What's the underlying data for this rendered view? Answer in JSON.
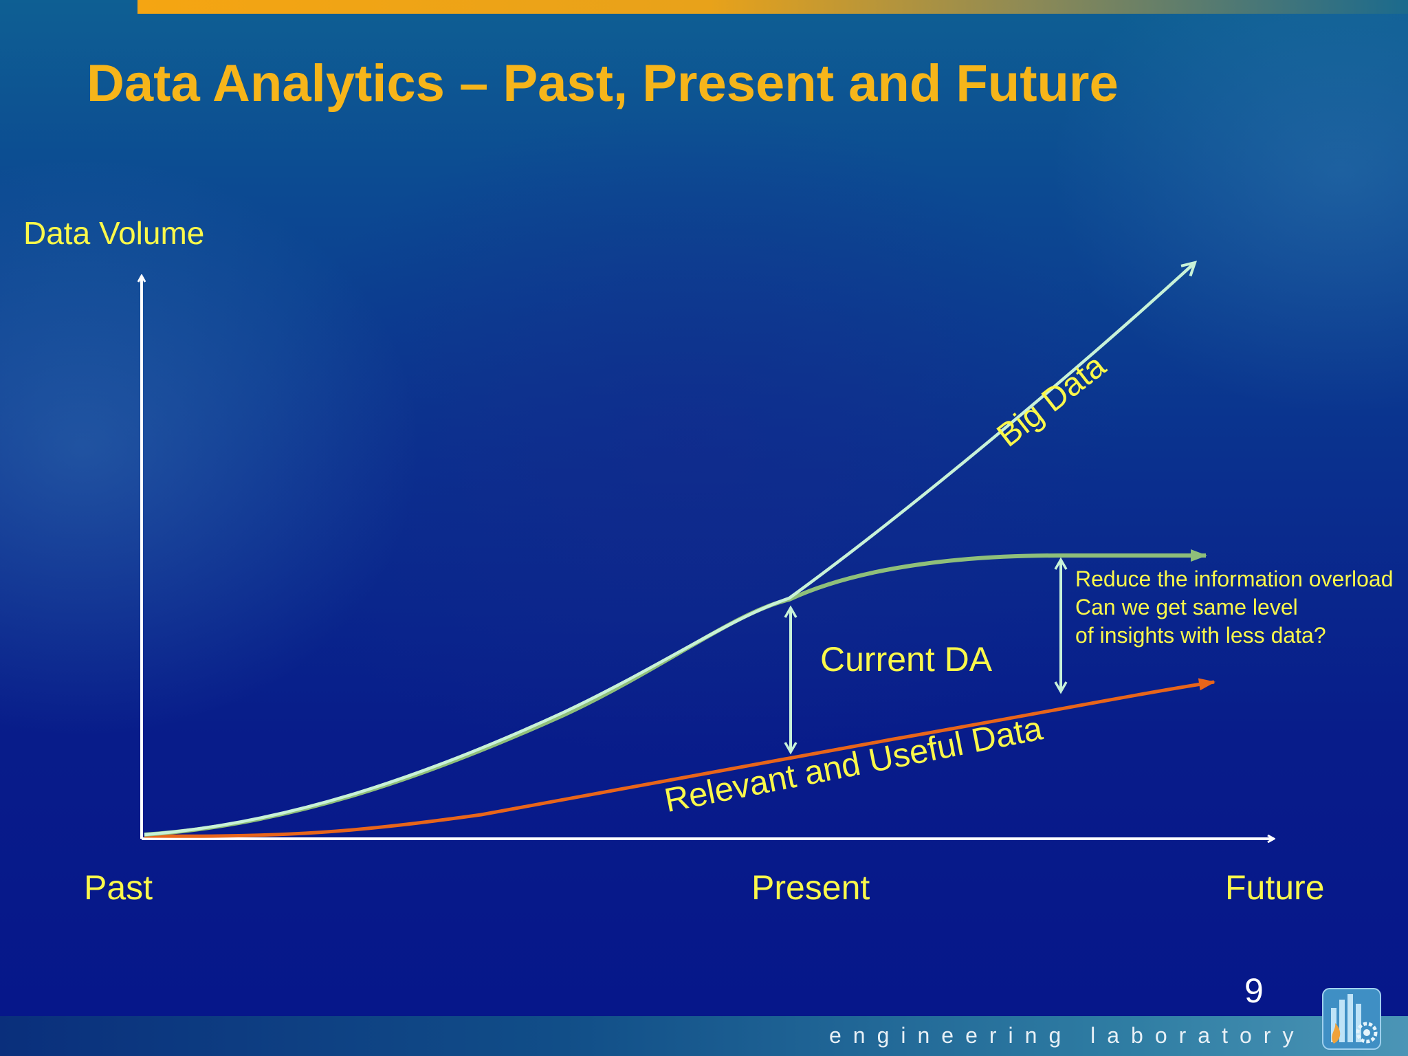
{
  "slide": {
    "title": "Data Analytics – Past, Present and Future",
    "page_number": "9",
    "footer": "engineering laboratory",
    "logo_icon": "engineering-lab-logo"
  },
  "diagram": {
    "axes": {
      "y_label": "Data Volume",
      "x_past": "Past",
      "x_present": "Present",
      "x_future": "Future"
    },
    "curves": {
      "big_data": "Big Data",
      "relevant": "Relevant and Useful Data"
    },
    "gaps": {
      "current": "Current DA",
      "note_lines": [
        "Reduce the information overload",
        "Can we get same level",
        "of insights with less data?"
      ]
    },
    "colors": {
      "title": "#f6b51a",
      "labels": "#fbf84a",
      "big_data_curve": "#c8f2d8",
      "plateau_curve": "#8fbf7a",
      "relevant_curve": "#e8651a",
      "axes": "#ffffff"
    }
  }
}
